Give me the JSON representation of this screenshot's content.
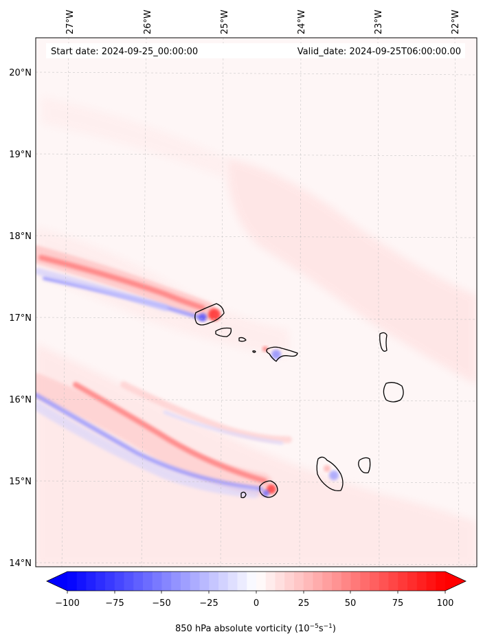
{
  "header": {
    "start_label": "Start date: 2024-09-25_00:00:00",
    "valid_label": "Valid_date: 2024-09-25T06:00:00.00"
  },
  "map": {
    "longitude_ticks": [
      "27°W",
      "26°W",
      "25°W",
      "24°W",
      "23°W",
      "22°W"
    ],
    "latitude_ticks": [
      "20°N",
      "19°N",
      "18°N",
      "17°N",
      "16°N",
      "15°N",
      "14°N"
    ],
    "gridlines": true,
    "region": "Cape Verde islands",
    "coastline_color": "#000000"
  },
  "colorbar": {
    "colormap": "bwr",
    "range": [
      -100,
      100
    ],
    "extend": "both",
    "ticks": [
      "−100",
      "−75",
      "−50",
      "−25",
      "0",
      "25",
      "50",
      "75",
      "100"
    ],
    "label_main": "850 hPa absolute vorticity (10",
    "label_exp1": "−5",
    "label_mid": "s",
    "label_exp2": "−1",
    "label_end": ")",
    "negative_color": "#0000ff",
    "neutral_color": "#ffffff",
    "positive_color": "#ff0000"
  }
}
